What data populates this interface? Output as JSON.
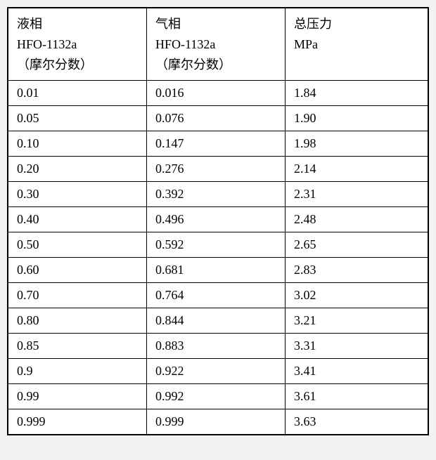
{
  "table": {
    "columns": [
      {
        "line1": "液相",
        "line2": "HFO-1132a",
        "line3": "（摩尔分数）"
      },
      {
        "line1": "气相",
        "line2": "HFO-1132a",
        "line3": "（摩尔分数）"
      },
      {
        "line1": "总压力",
        "line2": "MPa",
        "line3": ""
      }
    ],
    "rows": [
      [
        "0.01",
        "0.016",
        "1.84"
      ],
      [
        "0.05",
        "0.076",
        "1.90"
      ],
      [
        "0.10",
        "0.147",
        "1.98"
      ],
      [
        "0.20",
        "0.276",
        "2.14"
      ],
      [
        "0.30",
        "0.392",
        "2.31"
      ],
      [
        "0.40",
        "0.496",
        "2.48"
      ],
      [
        "0.50",
        "0.592",
        "2.65"
      ],
      [
        "0.60",
        "0.681",
        "2.83"
      ],
      [
        "0.70",
        "0.764",
        "3.02"
      ],
      [
        "0.80",
        "0.844",
        "3.21"
      ],
      [
        "0.85",
        "0.883",
        "3.31"
      ],
      [
        "0.9",
        "0.922",
        "3.41"
      ],
      [
        "0.99",
        "0.992",
        "3.61"
      ],
      [
        "0.999",
        "0.999",
        "3.63"
      ]
    ],
    "background_color": "#ffffff",
    "border_color": "#000000",
    "font_size": 18
  }
}
